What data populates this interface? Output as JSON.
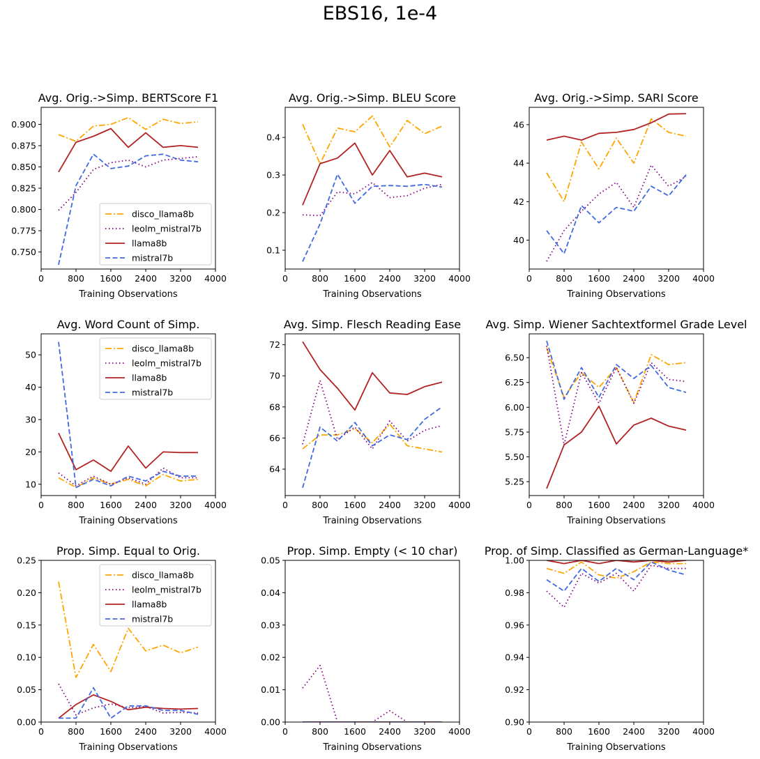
{
  "figure": {
    "title": "EBS16, 1e-4"
  },
  "colors": {
    "disco_llama8b": "#FFA500",
    "leolm_mistral7b": "#800080",
    "llama8b": "#B22222",
    "mistral7b": "#4169E1"
  },
  "chart_data": [
    {
      "type": "line",
      "title": "Avg. Orig.->Simp. BERTScore F1",
      "xlabel": "Training Observations",
      "xlim": [
        0,
        4000
      ],
      "xticks": [
        "0",
        "800",
        "1600",
        "2400",
        "3200",
        "4000"
      ],
      "ylim": [
        0.73,
        0.92
      ],
      "yticks": [
        "0.750",
        "0.775",
        "0.800",
        "0.825",
        "0.850",
        "0.875",
        "0.900"
      ],
      "legend": "lower right",
      "x": [
        400,
        800,
        1200,
        1600,
        2000,
        2400,
        2800,
        3200,
        3600
      ],
      "series": [
        {
          "name": "disco_llama8b",
          "values": [
            0.888,
            0.88,
            0.898,
            0.9,
            0.908,
            0.894,
            0.906,
            0.901,
            0.903
          ]
        },
        {
          "name": "leolm_mistral7b",
          "values": [
            0.799,
            0.82,
            0.847,
            0.855,
            0.858,
            0.85,
            0.858,
            0.86,
            0.862
          ]
        },
        {
          "name": "llama8b",
          "values": [
            0.844,
            0.879,
            0.886,
            0.895,
            0.873,
            0.89,
            0.873,
            0.875,
            0.873
          ]
        },
        {
          "name": "mistral7b",
          "values": [
            0.735,
            0.828,
            0.865,
            0.848,
            0.851,
            0.863,
            0.865,
            0.858,
            0.856
          ]
        }
      ]
    },
    {
      "type": "line",
      "title": "Avg. Orig.->Simp. BLEU Score",
      "xlabel": "Training Observations",
      "xlim": [
        0,
        4000
      ],
      "xticks": [
        "0",
        "800",
        "1600",
        "2400",
        "3200",
        "4000"
      ],
      "ylim": [
        0.05,
        0.48
      ],
      "yticks": [
        "0.1",
        "0.2",
        "0.3",
        "0.4"
      ],
      "legend": "none",
      "x": [
        400,
        800,
        1200,
        1600,
        2000,
        2400,
        2800,
        3200,
        3600
      ],
      "series": [
        {
          "name": "disco_llama8b",
          "values": [
            0.435,
            0.33,
            0.425,
            0.415,
            0.457,
            0.375,
            0.445,
            0.41,
            0.43
          ]
        },
        {
          "name": "leolm_mistral7b",
          "values": [
            0.194,
            0.192,
            0.255,
            0.25,
            0.28,
            0.24,
            0.245,
            0.265,
            0.275
          ]
        },
        {
          "name": "llama8b",
          "values": [
            0.22,
            0.33,
            0.345,
            0.385,
            0.3,
            0.365,
            0.295,
            0.305,
            0.295
          ]
        },
        {
          "name": "mistral7b",
          "values": [
            0.07,
            0.17,
            0.302,
            0.225,
            0.27,
            0.272,
            0.27,
            0.275,
            0.268
          ]
        }
      ]
    },
    {
      "type": "line",
      "title": "Avg. Orig.->Simp. SARI Score",
      "xlabel": "Training Observations",
      "xlim": [
        0,
        4000
      ],
      "xticks": [
        "0",
        "800",
        "1600",
        "2400",
        "3200",
        "4000"
      ],
      "ylim": [
        38.5,
        46.9
      ],
      "yticks": [
        "40",
        "42",
        "44",
        "46"
      ],
      "legend": "none",
      "x": [
        400,
        800,
        1200,
        1600,
        2000,
        2400,
        2800,
        3200,
        3600
      ],
      "series": [
        {
          "name": "disco_llama8b",
          "values": [
            43.5,
            42.0,
            45.1,
            43.7,
            45.3,
            44.0,
            46.3,
            45.6,
            45.4
          ]
        },
        {
          "name": "leolm_mistral7b",
          "values": [
            38.9,
            40.5,
            41.5,
            42.4,
            43.0,
            41.7,
            43.9,
            42.8,
            43.3
          ]
        },
        {
          "name": "llama8b",
          "values": [
            45.2,
            45.4,
            45.2,
            45.55,
            45.6,
            45.75,
            46.1,
            46.55,
            46.57
          ]
        },
        {
          "name": "mistral7b",
          "values": [
            40.5,
            39.3,
            41.8,
            40.9,
            41.7,
            41.5,
            42.8,
            42.3,
            43.4
          ]
        }
      ]
    },
    {
      "type": "line",
      "title": "Avg. Word Count of Simp.",
      "xlabel": "Training Observations",
      "xlim": [
        0,
        4000
      ],
      "xticks": [
        "0",
        "800",
        "1600",
        "2400",
        "3200",
        "4000"
      ],
      "ylim": [
        6.5,
        56.5
      ],
      "yticks": [
        "10",
        "20",
        "30",
        "40",
        "50"
      ],
      "legend": "upper right",
      "x": [
        400,
        800,
        1200,
        1600,
        2000,
        2400,
        2800,
        3200,
        3600
      ],
      "series": [
        {
          "name": "disco_llama8b",
          "values": [
            12.0,
            9.0,
            12.0,
            10.0,
            11.5,
            9.5,
            13.0,
            11.0,
            11.5
          ]
        },
        {
          "name": "leolm_mistral7b",
          "values": [
            13.5,
            9.5,
            12.5,
            10.0,
            12.0,
            10.0,
            15.0,
            12.0,
            12.0
          ]
        },
        {
          "name": "llama8b",
          "values": [
            25.8,
            14.5,
            17.5,
            14.0,
            21.8,
            15.0,
            20.0,
            19.8,
            19.8
          ]
        },
        {
          "name": "mistral7b",
          "values": [
            54.0,
            9.0,
            11.5,
            9.5,
            12.5,
            11.0,
            14.0,
            12.5,
            12.5
          ]
        }
      ]
    },
    {
      "type": "line",
      "title": "Avg. Simp. Flesch Reading Ease",
      "xlabel": "Training Observations",
      "xlim": [
        0,
        4000
      ],
      "xticks": [
        "0",
        "800",
        "1600",
        "2400",
        "3200",
        "4000"
      ],
      "ylim": [
        62.3,
        72.7
      ],
      "yticks": [
        "64",
        "66",
        "68",
        "70",
        "72"
      ],
      "legend": "none",
      "x": [
        400,
        800,
        1200,
        1600,
        2000,
        2400,
        2800,
        3200,
        3600
      ],
      "series": [
        {
          "name": "disco_llama8b",
          "values": [
            65.3,
            66.2,
            66.2,
            66.6,
            65.7,
            66.9,
            65.5,
            65.3,
            65.1
          ]
        },
        {
          "name": "leolm_mistral7b",
          "values": [
            65.6,
            69.7,
            65.9,
            66.7,
            65.3,
            67.1,
            65.8,
            66.5,
            66.8
          ]
        },
        {
          "name": "llama8b",
          "values": [
            72.2,
            70.4,
            69.2,
            67.8,
            70.2,
            68.9,
            68.8,
            69.3,
            69.6
          ]
        },
        {
          "name": "mistral7b",
          "values": [
            62.8,
            66.7,
            65.8,
            67.0,
            65.5,
            66.2,
            65.9,
            67.2,
            68.0
          ]
        }
      ]
    },
    {
      "type": "line",
      "title": "Avg. Simp. Wiener Sachtextformel Grade Level",
      "xlabel": "Training Observations",
      "xlim": [
        0,
        4000
      ],
      "xticks": [
        "0",
        "800",
        "1600",
        "2400",
        "3200",
        "4000"
      ],
      "ylim": [
        5.11,
        6.74
      ],
      "yticks": [
        "5.25",
        "5.50",
        "5.75",
        "6.00",
        "6.25",
        "6.50"
      ],
      "legend": "none",
      "x": [
        400,
        800,
        1200,
        1600,
        2000,
        2400,
        2800,
        3200,
        3600
      ],
      "series": [
        {
          "name": "disco_llama8b",
          "values": [
            6.6,
            6.1,
            6.35,
            6.2,
            6.4,
            6.05,
            6.53,
            6.43,
            6.45
          ]
        },
        {
          "name": "leolm_mistral7b",
          "values": [
            6.62,
            5.62,
            6.35,
            6.04,
            6.4,
            6.04,
            6.45,
            6.28,
            6.26
          ]
        },
        {
          "name": "llama8b",
          "values": [
            5.18,
            5.62,
            5.75,
            6.01,
            5.63,
            5.82,
            5.89,
            5.81,
            5.77
          ]
        },
        {
          "name": "mistral7b",
          "values": [
            6.67,
            6.08,
            6.4,
            6.1,
            6.43,
            6.29,
            6.42,
            6.2,
            6.15
          ]
        }
      ]
    },
    {
      "type": "line",
      "title": "Prop. Simp. Equal to Orig.",
      "xlabel": "Training Observations",
      "xlim": [
        0,
        4000
      ],
      "xticks": [
        "0",
        "800",
        "1600",
        "2400",
        "3200",
        "4000"
      ],
      "ylim": [
        0,
        0.25
      ],
      "yticks": [
        "0.00",
        "0.05",
        "0.10",
        "0.15",
        "0.20",
        "0.25"
      ],
      "legend": "upper right",
      "x": [
        400,
        800,
        1200,
        1600,
        2000,
        2400,
        2800,
        3200,
        3600
      ],
      "series": [
        {
          "name": "disco_llama8b",
          "values": [
            0.217,
            0.069,
            0.12,
            0.078,
            0.145,
            0.11,
            0.119,
            0.107,
            0.116
          ]
        },
        {
          "name": "leolm_mistral7b",
          "values": [
            0.059,
            0.011,
            0.022,
            0.028,
            0.022,
            0.024,
            0.014,
            0.015,
            0.014
          ]
        },
        {
          "name": "llama8b",
          "values": [
            0.006,
            0.027,
            0.042,
            0.032,
            0.019,
            0.023,
            0.021,
            0.02,
            0.021
          ]
        },
        {
          "name": "mistral7b",
          "values": [
            0.006,
            0.006,
            0.053,
            0.006,
            0.025,
            0.025,
            0.018,
            0.018,
            0.012
          ]
        }
      ]
    },
    {
      "type": "line",
      "title": "Prop. Simp. Empty (< 10 char)",
      "xlabel": "Training Observations",
      "xlim": [
        0,
        4000
      ],
      "xticks": [
        "0",
        "800",
        "1600",
        "2400",
        "3200",
        "4000"
      ],
      "ylim": [
        0,
        0.05
      ],
      "yticks": [
        "0.00",
        "0.01",
        "0.02",
        "0.03",
        "0.04",
        "0.05"
      ],
      "legend": "none",
      "x": [
        400,
        800,
        1200,
        1600,
        2000,
        2400,
        2800,
        3200,
        3600
      ],
      "series": [
        {
          "name": "disco_llama8b",
          "values": [
            0,
            0,
            0,
            0,
            0,
            0,
            0,
            0,
            0
          ]
        },
        {
          "name": "leolm_mistral7b",
          "values": [
            0.0105,
            0.0175,
            0,
            0,
            0,
            0.0035,
            0,
            0,
            0
          ]
        },
        {
          "name": "llama8b",
          "values": [
            0,
            0,
            0,
            0,
            0,
            0,
            0,
            0,
            0
          ]
        },
        {
          "name": "mistral7b",
          "values": [
            0,
            0,
            0,
            0,
            0,
            0,
            0,
            0,
            0
          ]
        }
      ]
    },
    {
      "type": "line",
      "title": "Prop. of Simp. Classified as German-Language*",
      "xlabel": "Training Observations",
      "xlim": [
        0,
        4000
      ],
      "xticks": [
        "0",
        "800",
        "1600",
        "2400",
        "3200",
        "4000"
      ],
      "ylim": [
        0.9,
        1.0
      ],
      "yticks": [
        "0.90",
        "0.92",
        "0.94",
        "0.96",
        "0.98",
        "1.00"
      ],
      "legend": "none",
      "x": [
        400,
        800,
        1200,
        1600,
        2000,
        2400,
        2800,
        3200,
        3600
      ],
      "series": [
        {
          "name": "disco_llama8b",
          "values": [
            0.995,
            0.992,
            0.999,
            0.991,
            0.989,
            0.993,
            0.999,
            0.998,
            0.998
          ]
        },
        {
          "name": "leolm_mistral7b",
          "values": [
            0.981,
            0.971,
            0.992,
            0.986,
            0.992,
            0.981,
            0.997,
            0.995,
            0.995
          ]
        },
        {
          "name": "llama8b",
          "values": [
            1.0,
            0.998,
            1.0,
            0.998,
            1.0,
            0.999,
            1.0,
            0.999,
            1.0
          ]
        },
        {
          "name": "mistral7b",
          "values": [
            0.988,
            0.981,
            0.995,
            0.987,
            0.995,
            0.988,
            0.999,
            0.994,
            0.991
          ]
        }
      ]
    }
  ]
}
